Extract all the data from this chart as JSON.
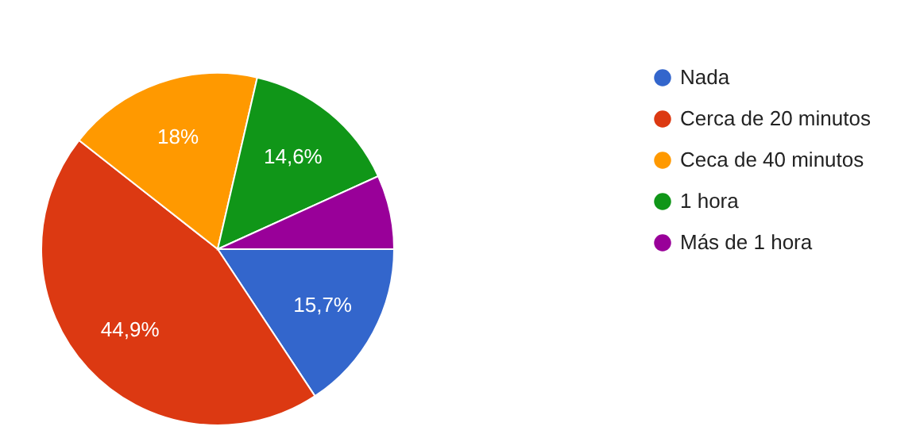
{
  "chart_data": {
    "type": "pie",
    "categories": [
      "Nada",
      "Cerca de 20 minutos",
      "Ceca de 40 minutos",
      "1 hora",
      "Más de 1 hora"
    ],
    "values": [
      15.7,
      44.9,
      18,
      14.6,
      6.8
    ],
    "colors": [
      "#3366cc",
      "#dc3912",
      "#ff9900",
      "#109618",
      "#990099"
    ],
    "value_labels": [
      "15,7%",
      "44,9%",
      "18%",
      "14,6%",
      null
    ],
    "legend": "right"
  }
}
